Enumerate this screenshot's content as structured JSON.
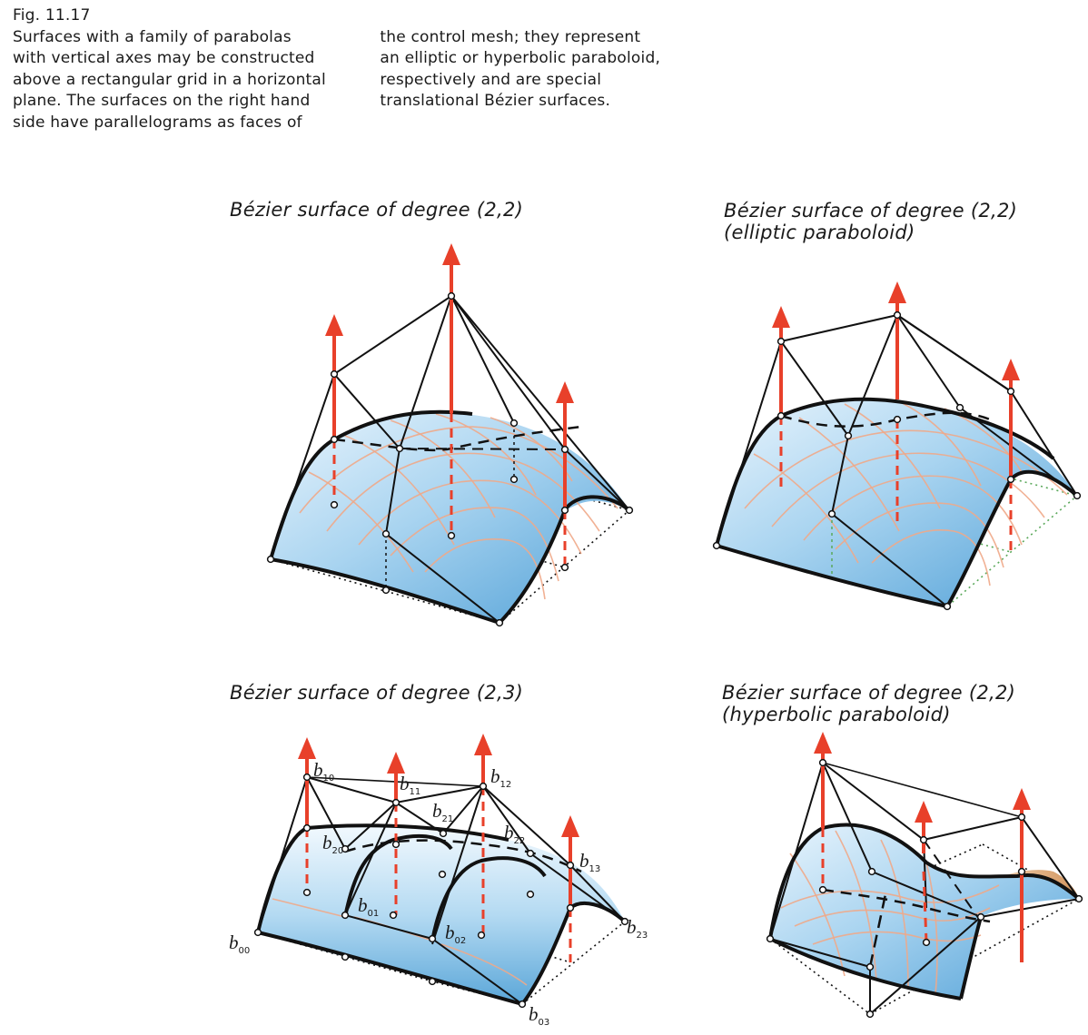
{
  "caption": {
    "figure_number": "Fig. 11.17",
    "column1": "Surfaces with a family of parabolas\nwith vertical axes may be constructed\nabove a rectangular grid in a horizontal\nplane. The surfaces on the right hand\nside have parallelograms as faces of",
    "column2": "the control mesh; they represent\nan elliptic or hyperbolic paraboloid,\nrespectively and are special\ntranslational Bézier surfaces."
  },
  "panels": {
    "top_left": {
      "title": "Bézier surface of degree (2,2)"
    },
    "top_right": {
      "title_line1": "Bézier surface of degree (2,2)",
      "title_line2": "(elliptic paraboloid)"
    },
    "bottom_left": {
      "title": "Bézier surface of degree (2,3)"
    },
    "bottom_right": {
      "title_line1": "Bézier surface of degree (2,2)",
      "title_line2": "(hyperbolic paraboloid)"
    }
  },
  "control_point_labels": [
    {
      "letter": "b",
      "index": "10"
    },
    {
      "letter": "b",
      "index": "11"
    },
    {
      "letter": "b",
      "index": "12"
    },
    {
      "letter": "b",
      "index": "21"
    },
    {
      "letter": "b",
      "index": "20"
    },
    {
      "letter": "b",
      "index": "22"
    },
    {
      "letter": "b",
      "index": "13"
    },
    {
      "letter": "b",
      "index": "01"
    },
    {
      "letter": "b",
      "index": "02"
    },
    {
      "letter": "b",
      "index": "00"
    },
    {
      "letter": "b",
      "index": "23"
    },
    {
      "letter": "b",
      "index": "03"
    }
  ],
  "colors": {
    "surface_light": "#e8f4fc",
    "surface_dark": "#5aa6d8",
    "surface_grid": "#f0a888",
    "arrow": "#e8402a",
    "mesh": "#111111",
    "base_grid": "#111111",
    "base_grid_elliptic": "#5aa85a",
    "surface_back_hyperbolic": "#d9a070"
  },
  "icons": [
    "arrow-up-icon",
    "control-point-icon"
  ]
}
